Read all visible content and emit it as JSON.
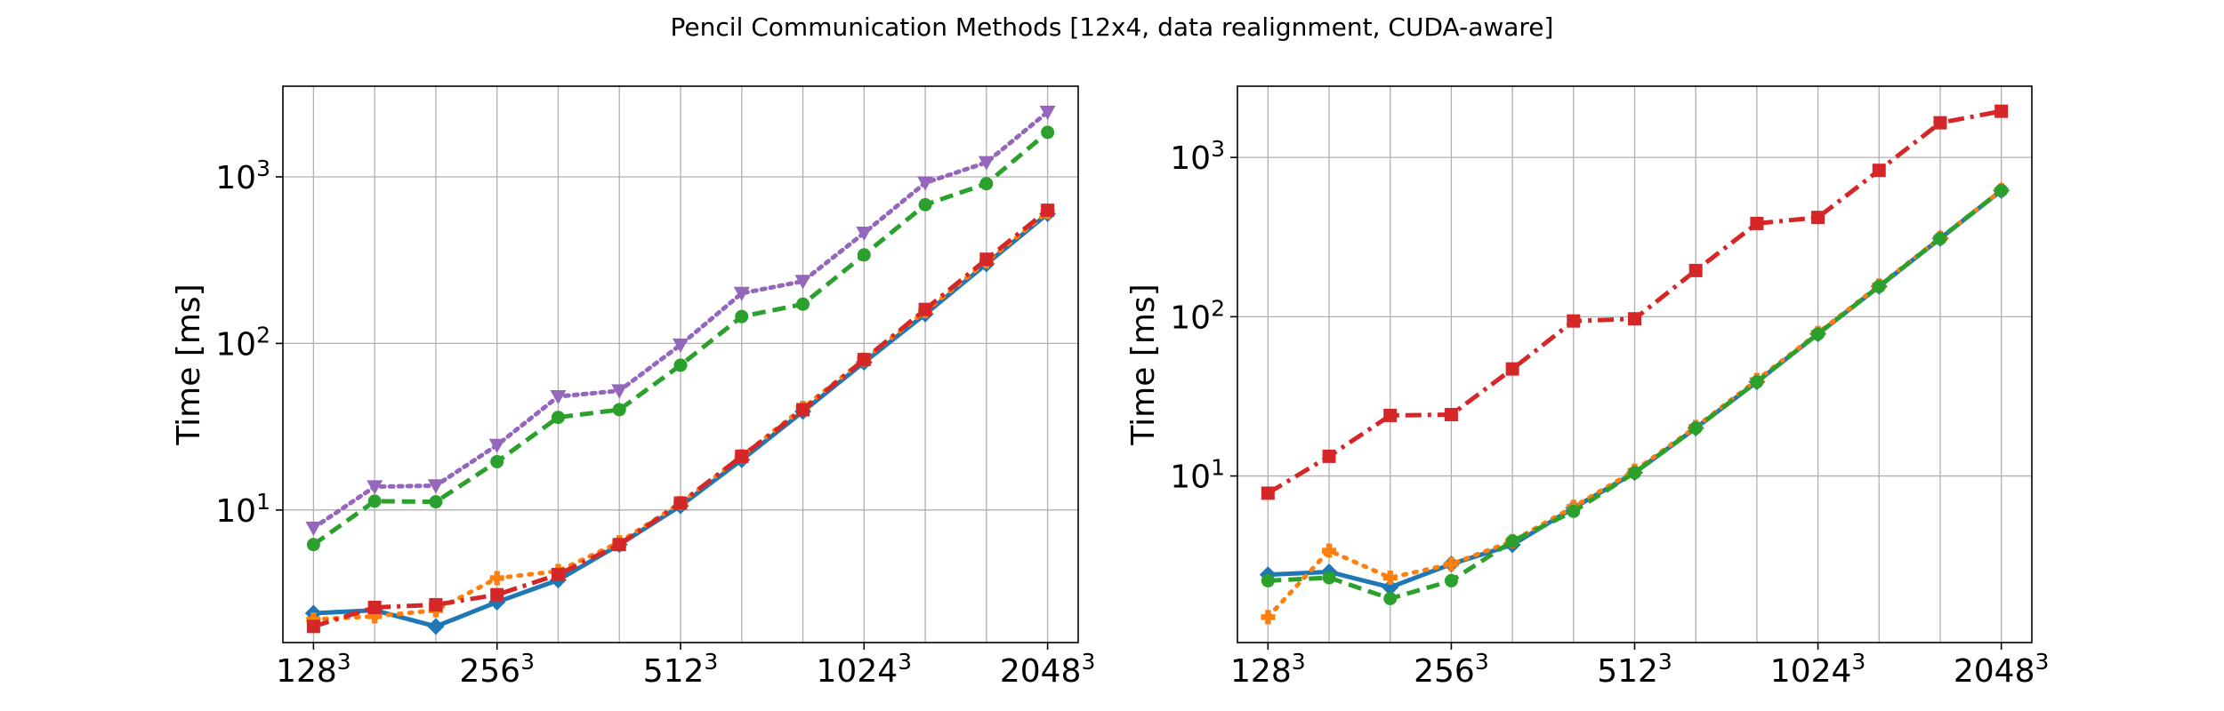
{
  "title": "Pencil Communication Methods [12x4, data realignment, CUDA-aware]",
  "colors": {
    "blue": "#1f77b4",
    "orange": "#ff7f0e",
    "green": "#2ca02c",
    "red": "#d62728",
    "purple": "#9467bd",
    "grid": "#b0b0b0"
  },
  "chart_data": [
    {
      "type": "line",
      "yscale": "log",
      "ylabel": "Time [ms]",
      "xlim": [
        -0.5,
        12.5
      ],
      "ylim": [
        1.6,
        3500
      ],
      "grid": true,
      "xtick_positions": [
        0,
        3,
        6,
        9,
        12
      ],
      "xtick_labels": [
        {
          "base": "128",
          "exp": "3"
        },
        {
          "base": "256",
          "exp": "3"
        },
        {
          "base": "512",
          "exp": "3"
        },
        {
          "base": "1024",
          "exp": "3"
        },
        {
          "base": "2048",
          "exp": "3"
        }
      ],
      "ytick_values": [
        10,
        100,
        1000
      ],
      "ytick_labels": [
        {
          "base": "10",
          "exp": "1"
        },
        {
          "base": "10",
          "exp": "2"
        },
        {
          "base": "10",
          "exp": "3"
        }
      ],
      "x": [
        0,
        1,
        2,
        3,
        4,
        5,
        6,
        7,
        8,
        9,
        10,
        11,
        12
      ],
      "series": [
        {
          "color": "blue",
          "linestyle": "solid",
          "marker": "diamond",
          "values": [
            2.4,
            2.5,
            2.0,
            2.8,
            3.8,
            6.2,
            10.6,
            20.0,
            39,
            77,
            150,
            300,
            600
          ]
        },
        {
          "color": "orange",
          "linestyle": "dotted",
          "marker": "plus",
          "values": [
            2.2,
            2.3,
            2.5,
            3.9,
            4.3,
            6.4,
            11.0,
            21.0,
            41,
            80,
            156,
            310,
            615
          ]
        },
        {
          "color": "green",
          "linestyle": "dashed",
          "marker": "circle",
          "values": [
            6.2,
            11.3,
            11.2,
            19.5,
            36,
            40,
            74,
            145,
            172,
            340,
            680,
            910,
            1850
          ]
        },
        {
          "color": "red",
          "linestyle": "dashdot",
          "marker": "square",
          "values": [
            2.0,
            2.6,
            2.7,
            3.1,
            4.1,
            6.2,
            11.0,
            21.0,
            40,
            80,
            160,
            320,
            630
          ]
        },
        {
          "color": "purple",
          "linestyle": "densedot",
          "marker": "triangle-down",
          "values": [
            7.8,
            13.8,
            14.0,
            24.5,
            48,
            52,
            98,
            200,
            236,
            460,
            920,
            1220,
            2450
          ]
        }
      ]
    },
    {
      "type": "line",
      "yscale": "log",
      "ylabel": "Time [ms]",
      "xlim": [
        -0.5,
        12.5
      ],
      "ylim": [
        0.9,
        2800
      ],
      "grid": true,
      "xtick_positions": [
        0,
        3,
        6,
        9,
        12
      ],
      "xtick_labels": [
        {
          "base": "128",
          "exp": "3"
        },
        {
          "base": "256",
          "exp": "3"
        },
        {
          "base": "512",
          "exp": "3"
        },
        {
          "base": "1024",
          "exp": "3"
        },
        {
          "base": "2048",
          "exp": "3"
        }
      ],
      "ytick_values": [
        10,
        100,
        1000
      ],
      "ytick_labels": [
        {
          "base": "10",
          "exp": "1"
        },
        {
          "base": "10",
          "exp": "2"
        },
        {
          "base": "10",
          "exp": "3"
        }
      ],
      "x": [
        0,
        1,
        2,
        3,
        4,
        5,
        6,
        7,
        8,
        9,
        10,
        11,
        12
      ],
      "series": [
        {
          "color": "blue",
          "linestyle": "solid",
          "marker": "diamond",
          "values": [
            2.4,
            2.5,
            2.0,
            2.8,
            3.7,
            6.3,
            10.5,
            20.0,
            39,
            78,
            155,
            310,
            620
          ]
        },
        {
          "color": "orange",
          "linestyle": "dotted",
          "marker": "plus",
          "values": [
            1.3,
            3.4,
            2.3,
            2.8,
            3.9,
            6.4,
            10.8,
            20.3,
            40,
            79,
            157,
            312,
            622
          ]
        },
        {
          "color": "green",
          "linestyle": "dashed",
          "marker": "circle",
          "values": [
            2.2,
            2.3,
            1.7,
            2.2,
            3.9,
            6.0,
            10.5,
            20.0,
            39,
            78,
            155,
            310,
            620
          ]
        },
        {
          "color": "red",
          "linestyle": "dashdot",
          "marker": "square",
          "values": [
            7.8,
            13.3,
            24,
            24.3,
            47,
            94,
            97,
            195,
            385,
            420,
            830,
            1650,
            1950
          ]
        }
      ]
    }
  ]
}
